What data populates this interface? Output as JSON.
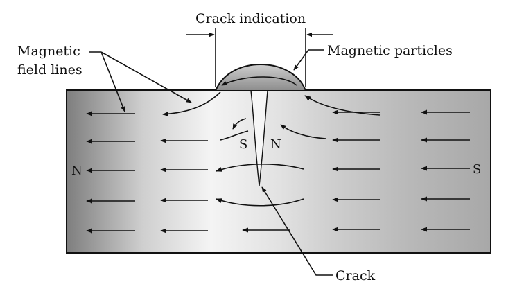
{
  "labels": {
    "crack_indication": "Crack indication",
    "magnetic_particles": "Magnetic particles",
    "magnetic_field_lines_1": "Magnetic",
    "magnetic_field_lines_2": "field lines",
    "crack": "Crack"
  },
  "poles": {
    "left_end": "N",
    "right_end": "S",
    "crack_left": "S",
    "crack_right": "N"
  },
  "colors": {
    "ink": "#111111",
    "bar_dark": "#8a8a8a",
    "bar_light": "#f2f2f2",
    "particles": "#9a9a9a"
  }
}
